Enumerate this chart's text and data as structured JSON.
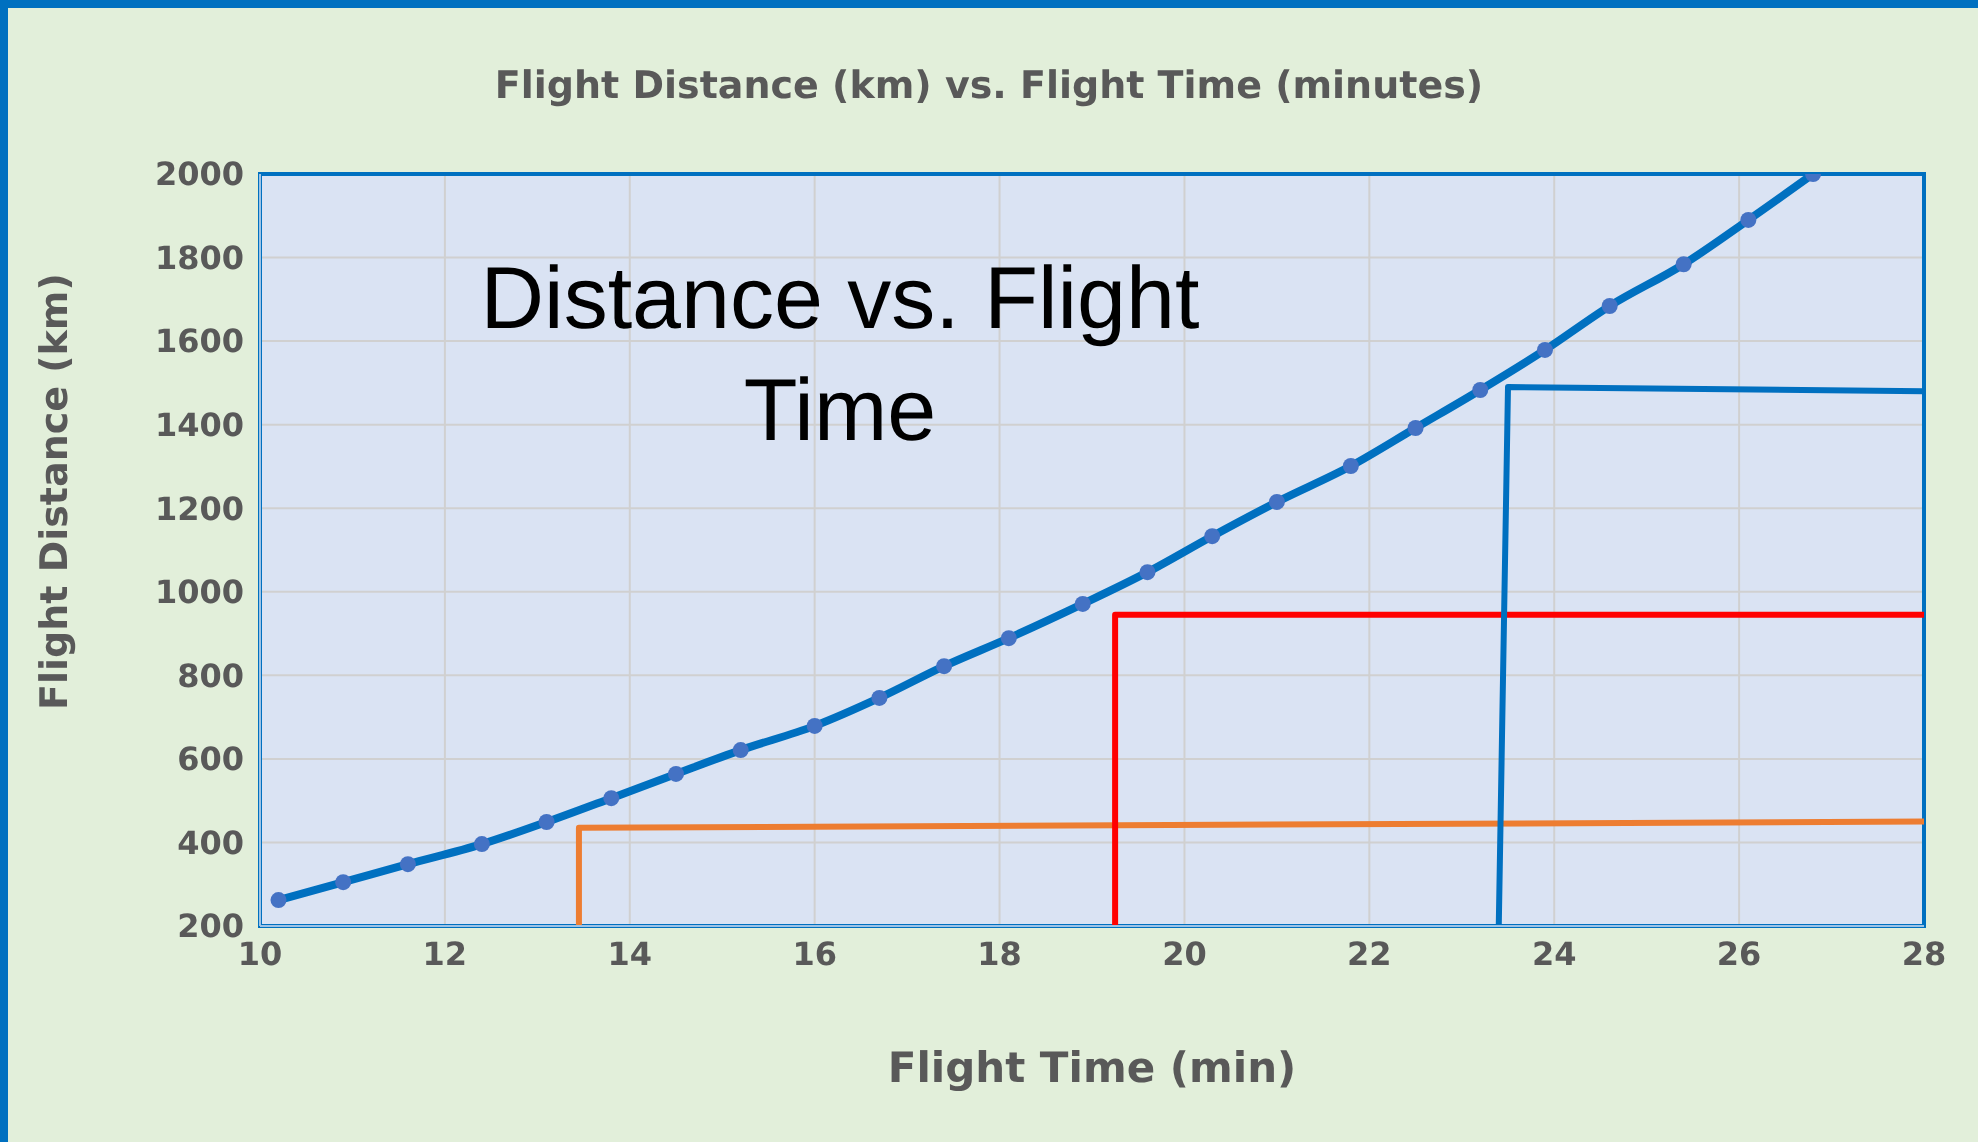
{
  "chart_data": {
    "type": "line",
    "title": "Flight Distance (km) vs. Flight Time (minutes)",
    "xlabel": "Flight Time (min)",
    "ylabel": "Flight Distance (km)",
    "annotations": [
      "Distance vs. Flight Time"
    ],
    "xlim": [
      10,
      28
    ],
    "xticks": [
      10,
      12,
      14,
      16,
      18,
      20,
      22,
      24,
      26,
      28
    ],
    "ylim": [
      200,
      2000
    ],
    "yticks": [
      200,
      400,
      600,
      800,
      1000,
      1200,
      1400,
      1600,
      1800,
      2000
    ],
    "grid": true,
    "marker": "circle",
    "line_style": "solid",
    "series": [
      {
        "color": "#0070c0",
        "x": [
          10.2,
          10.9,
          11.6,
          12.4,
          13.1,
          13.8,
          14.5,
          15.2,
          16.0,
          16.7,
          17.4,
          18.1,
          18.9,
          19.6,
          20.3,
          21.0,
          21.8,
          22.5,
          23.2,
          23.9,
          24.6,
          25.4,
          26.1,
          26.8
        ],
        "values": [
          262,
          305,
          348,
          396,
          449,
          506,
          564,
          621,
          679,
          746,
          822,
          889,
          971,
          1047,
          1133,
          1215,
          1301,
          1392,
          1483,
          1579,
          1684,
          1784,
          1890,
          2000
        ]
      },
      {
        "type": "line",
        "marker": "none",
        "color": "#ed7d31",
        "x": [
          13.45,
          13.45,
          28
        ],
        "values": [
          200,
          435,
          450
        ]
      },
      {
        "type": "line",
        "marker": "none",
        "color": "#ff0000",
        "x": [
          19.25,
          19.25,
          28
        ],
        "values": [
          200,
          945,
          945
        ]
      },
      {
        "type": "line",
        "marker": "none",
        "color": "#0070c0",
        "x": [
          23.4,
          23.5,
          28
        ],
        "values": [
          200,
          1490,
          1480
        ]
      }
    ]
  }
}
